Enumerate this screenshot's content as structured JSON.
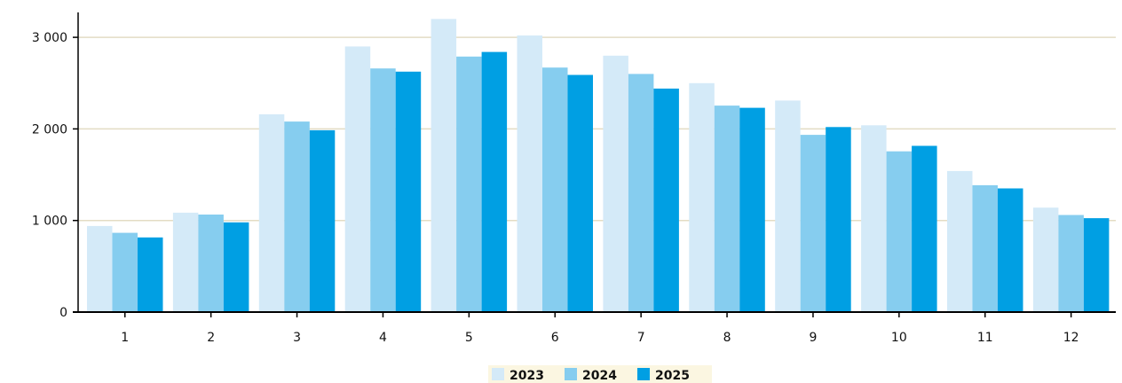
{
  "chart_data": {
    "type": "bar",
    "categories": [
      "1",
      "2",
      "3",
      "4",
      "5",
      "6",
      "7",
      "8",
      "9",
      "10",
      "11",
      "12"
    ],
    "series": [
      {
        "name": "2023",
        "color": "#d4eaf8",
        "values": [
          940,
          1085,
          2160,
          2900,
          3200,
          3020,
          2800,
          2500,
          2310,
          2040,
          1540,
          1140
        ]
      },
      {
        "name": "2024",
        "color": "#86cdef",
        "values": [
          865,
          1065,
          2080,
          2660,
          2790,
          2670,
          2600,
          2255,
          1935,
          1755,
          1385,
          1060
        ]
      },
      {
        "name": "2025",
        "color": "#009fe3",
        "values": [
          815,
          980,
          1985,
          2625,
          2840,
          2590,
          2440,
          2230,
          2020,
          1815,
          1350,
          1025
        ]
      }
    ],
    "yticks": [
      {
        "value": 0,
        "label": "0"
      },
      {
        "value": 1000,
        "label": "1 000"
      },
      {
        "value": 2000,
        "label": "2 000"
      },
      {
        "value": 3000,
        "label": "3 000"
      }
    ],
    "ylim": [
      0,
      3200
    ],
    "grid": true,
    "grid_color": "#e3dcc4",
    "axis_color": "#000000",
    "legend_bg": "#fbf6e1",
    "legend_position": "bottom-center"
  }
}
